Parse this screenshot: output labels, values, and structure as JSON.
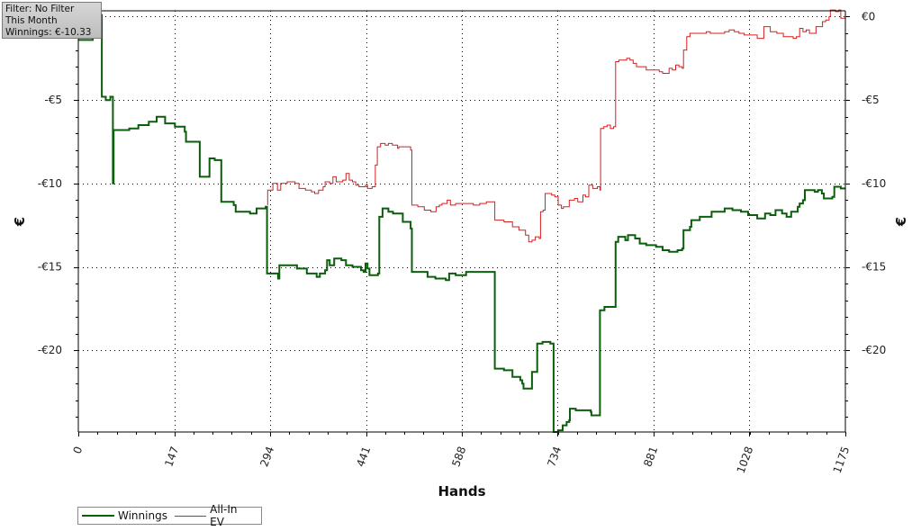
{
  "info_box": {
    "filter": "Filter: No Filter",
    "period": "This Month",
    "winnings": "Winnings: €-10.33"
  },
  "colors": {
    "winnings": "#0b5e0b",
    "all_in_ev": "#d42020",
    "grid": "#000000"
  },
  "legend": {
    "winnings_label": "Winnings",
    "ev_label": "All-In EV"
  },
  "chart_data": {
    "type": "line",
    "xlabel": "Hands",
    "ylabel_left": "€",
    "ylabel_right": "€",
    "xlim": [
      0,
      1175
    ],
    "ylim": [
      -24.9,
      0.35
    ],
    "x_ticks": [
      0,
      147,
      294,
      441,
      588,
      734,
      881,
      1028,
      1175
    ],
    "x_tick_labels": [
      "0",
      "147",
      "294",
      "441",
      "588",
      "734",
      "881",
      "1028",
      "1175"
    ],
    "y_ticks_right": [
      0,
      -5,
      -10,
      -15,
      -20
    ],
    "y_tick_labels_right": [
      "€0",
      "-€5",
      "-€10",
      "-€15",
      "-€20"
    ],
    "y_ticks_left": [
      -5,
      -10,
      -15,
      -20
    ],
    "y_tick_labels_left": [
      "-€5",
      "-€10",
      "-€15",
      "-€20"
    ],
    "grid": true,
    "legend_position": "bottom-left",
    "series": [
      {
        "name": "Winnings",
        "points": [
          [
            0,
            -1.4
          ],
          [
            20,
            -1.4
          ],
          [
            22,
            -1.2
          ],
          [
            33,
            -1.2
          ],
          [
            35,
            0.1
          ],
          [
            36,
            -4.8
          ],
          [
            41,
            -4.8
          ],
          [
            42,
            -5.0
          ],
          [
            47,
            -5.0
          ],
          [
            49,
            -4.8
          ],
          [
            52,
            -4.8
          ],
          [
            53,
            -10.0
          ],
          [
            54,
            -6.8
          ],
          [
            75,
            -6.8
          ],
          [
            78,
            -6.7
          ],
          [
            90,
            -6.7
          ],
          [
            92,
            -6.5
          ],
          [
            105,
            -6.5
          ],
          [
            108,
            -6.3
          ],
          [
            117,
            -6.3
          ],
          [
            120,
            -6.0
          ],
          [
            130,
            -6.0
          ],
          [
            133,
            -6.4
          ],
          [
            145,
            -6.4
          ],
          [
            148,
            -6.6
          ],
          [
            160,
            -6.6
          ],
          [
            163,
            -6.9
          ],
          [
            165,
            -7.5
          ],
          [
            184,
            -7.5
          ],
          [
            186,
            -9.6
          ],
          [
            198,
            -9.6
          ],
          [
            201,
            -8.5
          ],
          [
            206,
            -8.5
          ],
          [
            209,
            -8.6
          ],
          [
            214,
            -8.6
          ],
          [
            219,
            -11.1
          ],
          [
            238,
            -11.3
          ],
          [
            241,
            -11.7
          ],
          [
            260,
            -11.7
          ],
          [
            263,
            -11.8
          ],
          [
            273,
            -11.5
          ],
          [
            287,
            -11.4
          ],
          [
            289,
            -15.4
          ],
          [
            303,
            -15.4
          ],
          [
            306,
            -15.7
          ],
          [
            308,
            -14.9
          ],
          [
            320,
            -14.9
          ],
          [
            335,
            -15.1
          ],
          [
            350,
            -15.4
          ],
          [
            365,
            -15.6
          ],
          [
            370,
            -15.4
          ],
          [
            378,
            -15.2
          ],
          [
            381,
            -14.6
          ],
          [
            385,
            -14.9
          ],
          [
            392,
            -14.5
          ],
          [
            403,
            -14.6
          ],
          [
            410,
            -14.9
          ],
          [
            420,
            -15.0
          ],
          [
            433,
            -15.2
          ],
          [
            437,
            -15.3
          ],
          [
            440,
            -14.8
          ],
          [
            443,
            -15.1
          ],
          [
            446,
            -15.5
          ],
          [
            459,
            -15.4
          ],
          [
            461,
            -12.0
          ],
          [
            466,
            -11.5
          ],
          [
            475,
            -11.7
          ],
          [
            482,
            -11.8
          ],
          [
            497,
            -12.3
          ],
          [
            509,
            -12.7
          ],
          [
            511,
            -15.3
          ],
          [
            523,
            -15.3
          ],
          [
            535,
            -15.6
          ],
          [
            547,
            -15.7
          ],
          [
            563,
            -15.8
          ],
          [
            568,
            -15.4
          ],
          [
            578,
            -15.5
          ],
          [
            594,
            -15.3
          ],
          [
            611,
            -15.3
          ],
          [
            637,
            -15.3
          ],
          [
            638,
            -21.1
          ],
          [
            652,
            -21.2
          ],
          [
            665,
            -21.6
          ],
          [
            677,
            -21.8
          ],
          [
            680,
            -22.0
          ],
          [
            682,
            -22.3
          ],
          [
            692,
            -22.3
          ],
          [
            695,
            -21.3
          ],
          [
            701,
            -21.3
          ],
          [
            703,
            -19.6
          ],
          [
            711,
            -19.5
          ],
          [
            723,
            -19.6
          ],
          [
            727,
            -19.6
          ],
          [
            728,
            -24.9
          ],
          [
            735,
            -24.8
          ],
          [
            742,
            -24.5
          ],
          [
            748,
            -24.3
          ],
          [
            752,
            -24.2
          ],
          [
            753,
            -23.5
          ],
          [
            762,
            -23.6
          ],
          [
            770,
            -23.6
          ],
          [
            785,
            -23.7
          ],
          [
            786,
            -23.9
          ],
          [
            797,
            -23.9
          ],
          [
            799,
            -17.6
          ],
          [
            804,
            -17.6
          ],
          [
            806,
            -17.4
          ],
          [
            821,
            -17.4
          ],
          [
            823,
            -13.5
          ],
          [
            827,
            -13.2
          ],
          [
            838,
            -13.4
          ],
          [
            842,
            -13.1
          ],
          [
            853,
            -13.3
          ],
          [
            860,
            -13.6
          ],
          [
            870,
            -13.7
          ],
          [
            885,
            -13.8
          ],
          [
            895,
            -14.0
          ],
          [
            905,
            -14.1
          ],
          [
            918,
            -14.0
          ],
          [
            925,
            -13.9
          ],
          [
            927,
            -12.8
          ],
          [
            937,
            -12.6
          ],
          [
            939,
            -12.2
          ],
          [
            952,
            -12.0
          ],
          [
            970,
            -11.7
          ],
          [
            982,
            -11.7
          ],
          [
            990,
            -11.5
          ],
          [
            1002,
            -11.6
          ],
          [
            1015,
            -11.7
          ],
          [
            1026,
            -11.9
          ],
          [
            1033,
            -11.9
          ],
          [
            1040,
            -12.1
          ],
          [
            1052,
            -11.8
          ],
          [
            1060,
            -11.9
          ],
          [
            1068,
            -11.6
          ],
          [
            1078,
            -11.8
          ],
          [
            1085,
            -12.0
          ],
          [
            1092,
            -11.7
          ],
          [
            1102,
            -11.4
          ],
          [
            1105,
            -11.2
          ],
          [
            1110,
            -11.0
          ],
          [
            1113,
            -10.4
          ],
          [
            1120,
            -10.4
          ],
          [
            1128,
            -10.5
          ],
          [
            1133,
            -10.4
          ],
          [
            1139,
            -10.6
          ],
          [
            1142,
            -10.9
          ],
          [
            1150,
            -10.9
          ],
          [
            1155,
            -10.8
          ],
          [
            1158,
            -10.2
          ],
          [
            1163,
            -10.2
          ],
          [
            1168,
            -10.3
          ],
          [
            1175,
            -10.3
          ]
        ]
      },
      {
        "name": "All-In EV",
        "points": [
          [
            290,
            -11.3
          ],
          [
            290,
            -10.4
          ],
          [
            298,
            -10.0
          ],
          [
            305,
            -10.4
          ],
          [
            310,
            -10.0
          ],
          [
            320,
            -9.9
          ],
          [
            332,
            -10.0
          ],
          [
            338,
            -10.3
          ],
          [
            348,
            -10.4
          ],
          [
            357,
            -10.5
          ],
          [
            362,
            -10.6
          ],
          [
            368,
            -10.4
          ],
          [
            375,
            -10.2
          ],
          [
            378,
            -9.9
          ],
          [
            385,
            -10.0
          ],
          [
            390,
            -9.6
          ],
          [
            395,
            -9.9
          ],
          [
            405,
            -9.8
          ],
          [
            410,
            -9.4
          ],
          [
            415,
            -9.8
          ],
          [
            420,
            -9.9
          ],
          [
            425,
            -10.1
          ],
          [
            430,
            -10.2
          ],
          [
            435,
            -10.2
          ],
          [
            440,
            -10.1
          ],
          [
            443,
            -10.3
          ],
          [
            450,
            -10.2
          ],
          [
            455,
            -8.9
          ],
          [
            458,
            -7.8
          ],
          [
            463,
            -7.6
          ],
          [
            470,
            -7.7
          ],
          [
            475,
            -7.6
          ],
          [
            478,
            -7.6
          ],
          [
            481,
            -7.7
          ],
          [
            489,
            -7.9
          ],
          [
            491,
            -7.8
          ],
          [
            497,
            -7.8
          ],
          [
            509,
            -8.0
          ],
          [
            511,
            -11.3
          ],
          [
            520,
            -11.4
          ],
          [
            530,
            -11.6
          ],
          [
            540,
            -11.7
          ],
          [
            545,
            -11.7
          ],
          [
            548,
            -11.4
          ],
          [
            553,
            -11.3
          ],
          [
            557,
            -11.2
          ],
          [
            565,
            -11.0
          ],
          [
            570,
            -11.3
          ],
          [
            578,
            -11.2
          ],
          [
            588,
            -11.2
          ],
          [
            595,
            -11.2
          ],
          [
            605,
            -11.3
          ],
          [
            615,
            -11.2
          ],
          [
            625,
            -11.1
          ],
          [
            638,
            -11.1
          ],
          [
            638,
            -12.2
          ],
          [
            652,
            -12.3
          ],
          [
            665,
            -12.6
          ],
          [
            675,
            -12.8
          ],
          [
            685,
            -13.1
          ],
          [
            690,
            -13.5
          ],
          [
            695,
            -13.4
          ],
          [
            700,
            -13.2
          ],
          [
            703,
            -13.2
          ],
          [
            706,
            -13.3
          ],
          [
            708,
            -11.7
          ],
          [
            712,
            -11.6
          ],
          [
            715,
            -10.6
          ],
          [
            720,
            -10.6
          ],
          [
            725,
            -10.7
          ],
          [
            730,
            -10.8
          ],
          [
            735,
            -11.3
          ],
          [
            740,
            -11.5
          ],
          [
            743,
            -11.4
          ],
          [
            748,
            -11.4
          ],
          [
            752,
            -11.0
          ],
          [
            756,
            -11.0
          ],
          [
            760,
            -10.9
          ],
          [
            765,
            -11.1
          ],
          [
            770,
            -11.1
          ],
          [
            773,
            -10.7
          ],
          [
            777,
            -10.8
          ],
          [
            782,
            -10.1
          ],
          [
            788,
            -10.3
          ],
          [
            795,
            -10.2
          ],
          [
            799,
            -10.4
          ],
          [
            800,
            -6.7
          ],
          [
            805,
            -6.6
          ],
          [
            810,
            -6.5
          ],
          [
            815,
            -6.7
          ],
          [
            820,
            -6.6
          ],
          [
            822,
            -6.6
          ],
          [
            823,
            -2.7
          ],
          [
            828,
            -2.6
          ],
          [
            835,
            -2.6
          ],
          [
            840,
            -2.5
          ],
          [
            845,
            -2.6
          ],
          [
            850,
            -2.8
          ],
          [
            855,
            -3.0
          ],
          [
            860,
            -3.0
          ],
          [
            870,
            -3.2
          ],
          [
            880,
            -3.2
          ],
          [
            890,
            -3.3
          ],
          [
            895,
            -3.4
          ],
          [
            905,
            -3.1
          ],
          [
            910,
            -3.2
          ],
          [
            915,
            -2.9
          ],
          [
            920,
            -3.0
          ],
          [
            925,
            -3.1
          ],
          [
            927,
            -2.0
          ],
          [
            932,
            -1.2
          ],
          [
            937,
            -1.0
          ],
          [
            945,
            -1.0
          ],
          [
            955,
            -1.0
          ],
          [
            962,
            -0.9
          ],
          [
            968,
            -1.0
          ],
          [
            975,
            -1.0
          ],
          [
            985,
            -1.0
          ],
          [
            990,
            -0.9
          ],
          [
            997,
            -0.8
          ],
          [
            1005,
            -0.9
          ],
          [
            1012,
            -1.0
          ],
          [
            1020,
            -1.1
          ],
          [
            1030,
            -1.1
          ],
          [
            1040,
            -1.3
          ],
          [
            1045,
            -1.3
          ],
          [
            1050,
            -0.6
          ],
          [
            1060,
            -0.9
          ],
          [
            1070,
            -1.0
          ],
          [
            1080,
            -1.2
          ],
          [
            1090,
            -1.2
          ],
          [
            1095,
            -1.3
          ],
          [
            1100,
            -1.2
          ],
          [
            1105,
            -0.7
          ],
          [
            1110,
            -0.9
          ],
          [
            1115,
            -0.8
          ],
          [
            1120,
            -1.0
          ],
          [
            1125,
            -1.0
          ],
          [
            1130,
            -0.6
          ],
          [
            1135,
            -0.6
          ],
          [
            1140,
            -0.3
          ],
          [
            1145,
            -0.2
          ],
          [
            1150,
            0.0
          ],
          [
            1152,
            0.4
          ],
          [
            1160,
            0.3
          ],
          [
            1165,
            0.4
          ],
          [
            1168,
            -0.1
          ],
          [
            1175,
            -0.2
          ]
        ]
      }
    ]
  }
}
